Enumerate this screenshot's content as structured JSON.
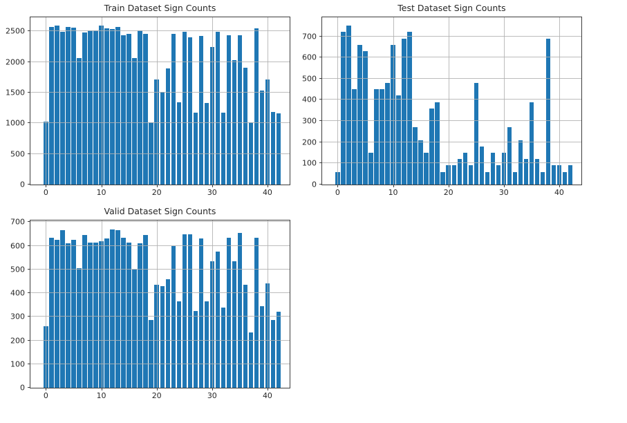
{
  "figure": {
    "background": "#ffffff",
    "bar_color": "#1f77b4",
    "grid_color": "rgba(176,176,176,0.85)",
    "spine_color": "#3c3c3c",
    "text_color": "#262626"
  },
  "chart_data": [
    {
      "type": "bar",
      "title": "Train Dataset Sign Counts",
      "xlabel": "",
      "ylabel": "",
      "x_description": "traffic sign class id 0-42",
      "xticks": [
        0,
        10,
        20,
        30,
        40
      ],
      "yticks": [
        0,
        500,
        1000,
        1500,
        2000,
        2500
      ],
      "xlim": [
        -2.8,
        44.0
      ],
      "ylim": [
        0,
        2730
      ],
      "grid": true,
      "legend": false,
      "values": [
        1030,
        2570,
        2600,
        2490,
        2570,
        2560,
        2070,
        2480,
        2520,
        2520,
        2590,
        2550,
        2540,
        2570,
        2440,
        2460,
        2070,
        2520,
        2460,
        1020,
        1710,
        1510,
        1890,
        2460,
        1340,
        2490,
        2400,
        1170,
        2420,
        1330,
        2240,
        2490,
        1170,
        2440,
        2030,
        2440,
        1910,
        1020,
        2550,
        1540,
        1710,
        1190,
        1160
      ]
    },
    {
      "type": "bar",
      "title": "Test Dataset Sign Counts",
      "xlabel": "",
      "ylabel": "",
      "x_description": "traffic sign class id 0-42",
      "xticks": [
        0,
        10,
        20,
        30,
        40
      ],
      "yticks": [
        0,
        100,
        200,
        300,
        400,
        500,
        600,
        700
      ],
      "xlim": [
        -2.8,
        44.0
      ],
      "ylim": [
        0,
        790
      ],
      "grid": true,
      "legend": false,
      "values": [
        60,
        720,
        750,
        450,
        660,
        630,
        150,
        450,
        450,
        480,
        660,
        420,
        690,
        720,
        270,
        210,
        150,
        360,
        390,
        60,
        90,
        90,
        120,
        150,
        90,
        480,
        180,
        60,
        150,
        90,
        150,
        270,
        60,
        210,
        120,
        390,
        120,
        60,
        690,
        90,
        90,
        60,
        90
      ]
    },
    {
      "type": "bar",
      "title": "Valid Dataset Sign Counts",
      "xlabel": "",
      "ylabel": "",
      "x_description": "traffic sign class id 0-42",
      "xticks": [
        0,
        10,
        20,
        30,
        40
      ],
      "yticks": [
        0,
        100,
        200,
        300,
        400,
        500,
        600,
        700
      ],
      "xlim": [
        -2.8,
        44.0
      ],
      "ylim": [
        0,
        707
      ],
      "grid": true,
      "legend": false,
      "values": [
        260,
        635,
        625,
        665,
        610,
        625,
        505,
        645,
        615,
        615,
        620,
        630,
        670,
        665,
        635,
        615,
        500,
        610,
        645,
        285,
        435,
        430,
        460,
        600,
        365,
        650,
        650,
        325,
        630,
        365,
        535,
        575,
        340,
        635,
        535,
        655,
        435,
        235,
        635,
        345,
        440,
        285,
        320
      ]
    }
  ]
}
